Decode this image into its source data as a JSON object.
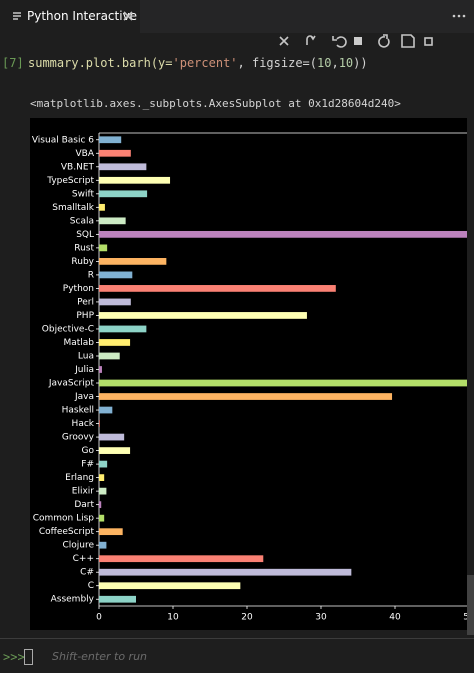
{
  "tab": {
    "title": "Python Interactive"
  },
  "cell": {
    "label": "[7]",
    "code": [
      "summary.plot.barh(y=",
      "'percent'",
      ", figsize=(",
      "10",
      ",",
      "10",
      "))"
    ]
  },
  "output": "<matplotlib.axes._subplots.AxesSubplot at 0x1d28604d240>",
  "input": {
    "prompt": ">>>",
    "placeholder": "Shift-enter to run"
  },
  "chart_data": {
    "type": "barh",
    "categories": [
      "Assembly",
      "C",
      "C#",
      "C++",
      "Clojure",
      "CoffeeScript",
      "Common Lisp",
      "Dart",
      "Elixir",
      "Erlang",
      "F#",
      "Go",
      "Groovy",
      "Hack",
      "Haskell",
      "Java",
      "JavaScript",
      "Julia",
      "Lua",
      "Matlab",
      "Objective-C",
      "PHP",
      "Perl",
      "Python",
      "R",
      "Ruby",
      "Rust",
      "SQL",
      "Scala",
      "Smalltalk",
      "Swift",
      "TypeScript",
      "VB.NET",
      "VBA",
      "Visual Basic 6"
    ],
    "values": [
      5.0,
      19.1,
      34.1,
      22.2,
      1.0,
      3.2,
      0.7,
      0.3,
      1.0,
      0.7,
      1.1,
      4.2,
      3.4,
      0.1,
      1.8,
      39.6,
      54,
      0.4,
      2.8,
      4.2,
      6.4,
      28.1,
      4.3,
      32.0,
      4.5,
      9.1,
      1.1,
      54,
      3.6,
      0.8,
      6.5,
      9.6,
      6.4,
      4.3,
      3.0
    ],
    "colors": [
      "#8dd3c7",
      "#feffb3",
      "#bfbbd9",
      "#fa8174",
      "#81b1d2",
      "#fdb462",
      "#b3de69",
      "#bc82bd",
      "#ccebc4",
      "#ffed6f"
    ],
    "xlim": [
      0,
      50
    ],
    "xticks": [
      0,
      10,
      20,
      30,
      40,
      50
    ]
  }
}
